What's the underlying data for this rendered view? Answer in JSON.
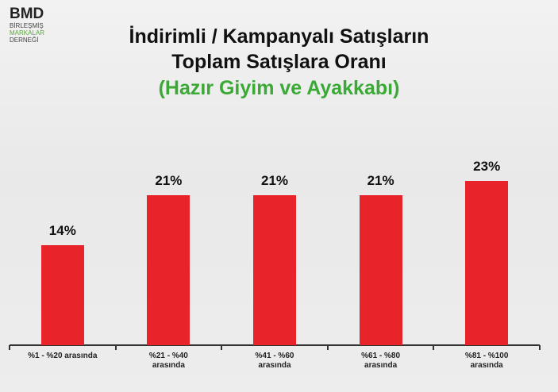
{
  "logo": {
    "name": "BMD",
    "lines": [
      "BİRLEŞMİŞ",
      "MARKALAR",
      "DERNEĞİ"
    ]
  },
  "chart_data": {
    "type": "bar",
    "title": [
      "İndirimli / Kampanyalı Satışların",
      "Toplam Satışlara Oranı"
    ],
    "subtitle": "(Hazır Giyim ve Ayakkabı)",
    "categories": [
      "%1 - %20 arasında",
      "%21 - %40 arasında",
      "%41 - %60 arasında",
      "%61 - %80 arasında",
      "%81 - %100 arasında"
    ],
    "values": [
      14,
      21,
      21,
      21,
      23
    ],
    "value_labels": [
      "14%",
      "21%",
      "21%",
      "21%",
      "23%"
    ],
    "color": "#e8232a"
  }
}
